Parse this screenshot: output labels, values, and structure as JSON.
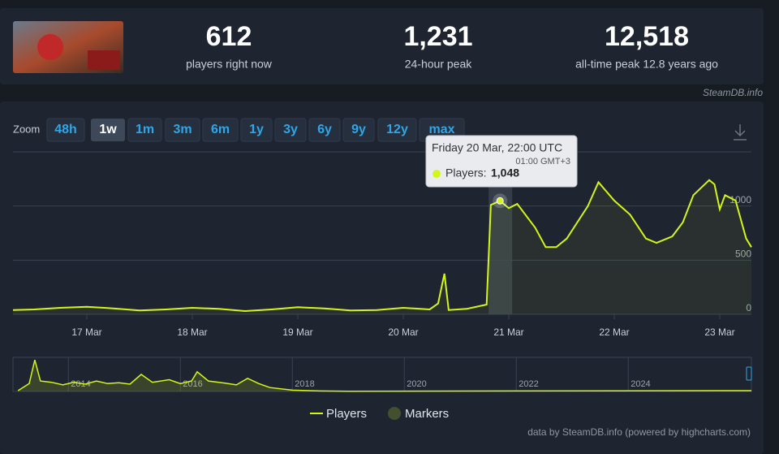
{
  "stats": [
    {
      "value": "612",
      "label": "players right now"
    },
    {
      "value": "1,231",
      "label": "24-hour peak"
    },
    {
      "value": "12,518",
      "label": "all-time peak 12.8 years ago"
    }
  ],
  "source": "SteamDB.info",
  "zoom": {
    "label": "Zoom",
    "buttons": [
      "48h",
      "1w",
      "1m",
      "3m",
      "6m",
      "1y",
      "3y",
      "6y",
      "9y",
      "12y",
      "max"
    ],
    "active": 1
  },
  "chart_data": {
    "type": "line",
    "series": [
      {
        "name": "Players",
        "color": "#d4f51a",
        "x": [
          16.3,
          16.5,
          16.75,
          17,
          17.25,
          17.5,
          17.75,
          18,
          18.25,
          18.5,
          18.75,
          19,
          19.25,
          19.5,
          19.75,
          20,
          20.25,
          20.33,
          20.39,
          20.43,
          20.6,
          20.79,
          20.83,
          20.917,
          21,
          21.08,
          21.25,
          21.35,
          21.45,
          21.55,
          21.75,
          21.85,
          22,
          22.15,
          22.3,
          22.4,
          22.55,
          22.65,
          22.75,
          22.9,
          22.95,
          23,
          23.05,
          23.15,
          23.25,
          23.3
        ],
        "values": [
          40,
          45,
          60,
          70,
          55,
          35,
          45,
          60,
          50,
          30,
          45,
          65,
          55,
          35,
          40,
          60,
          45,
          100,
          375,
          40,
          50,
          90,
          1010,
          1048,
          980,
          1020,
          800,
          620,
          620,
          700,
          1000,
          1220,
          1050,
          920,
          700,
          660,
          720,
          850,
          1100,
          1240,
          1200,
          970,
          1100,
          1050,
          700,
          620
        ]
      }
    ],
    "markers": {
      "name": "Markers",
      "color": "#434f2e"
    },
    "xlim": [
      16.3,
      23.3
    ],
    "xticks": [
      {
        "value": 17,
        "label": "17 Mar"
      },
      {
        "value": 18,
        "label": "18 Mar"
      },
      {
        "value": 19,
        "label": "19 Mar"
      },
      {
        "value": 20,
        "label": "20 Mar"
      },
      {
        "value": 21,
        "label": "21 Mar"
      },
      {
        "value": 22,
        "label": "22 Mar"
      },
      {
        "value": 23,
        "label": "23 Mar"
      }
    ],
    "ylim": [
      0,
      1500
    ],
    "yticks": [
      0,
      500,
      1000
    ],
    "grid": true,
    "hover_index": 23,
    "tooltip": {
      "title": "Friday 20 Mar, 22:00 UTC",
      "subtitle": "01:00 GMT+3",
      "series_label": "Players:",
      "value_label": "1,048"
    },
    "navigator": {
      "x": [
        2013.1,
        2013.3,
        2013.4,
        2013.5,
        2013.7,
        2013.9,
        2014.1,
        2014.3,
        2014.5,
        2014.7,
        2014.9,
        2015.1,
        2015.3,
        2015.5,
        2015.8,
        2016.0,
        2016.2,
        2016.3,
        2016.5,
        2016.8,
        2017.0,
        2017.2,
        2017.4,
        2017.6,
        2018.0,
        2018.5,
        2019.0,
        2026.1,
        2026.2
      ],
      "values": [
        300,
        3000,
        12000,
        4000,
        3500,
        2500,
        3500,
        2800,
        4000,
        3000,
        3300,
        2800,
        6500,
        3500,
        4500,
        3000,
        4000,
        7500,
        4000,
        3200,
        2500,
        5000,
        3000,
        1500,
        500,
        200,
        100,
        300,
        300
      ],
      "xlim": [
        2013.01,
        2026.2
      ],
      "xticks": [
        2014,
        2016,
        2018,
        2020,
        2022,
        2024
      ],
      "ylim": [
        0,
        13000
      ]
    },
    "credit": "data by SteamDB.info (powered by highcharts.com)"
  }
}
